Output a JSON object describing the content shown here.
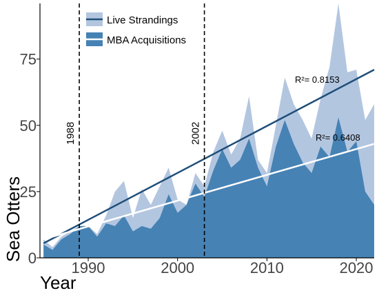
{
  "chart_data": {
    "type": "area",
    "xlabel": "Year",
    "ylabel": "Sea Otters",
    "xlim": [
      1984.6,
      2022
    ],
    "ylim": [
      0,
      96
    ],
    "xticks": [
      1990,
      2000,
      2010,
      2020
    ],
    "yticks": [
      0,
      25,
      50,
      75
    ],
    "grid": false,
    "legend_position": "top-left",
    "x": [
      1985,
      1986,
      1987,
      1988,
      1989,
      1990,
      1991,
      1992,
      1993,
      1994,
      1995,
      1996,
      1997,
      1998,
      1999,
      2000,
      2001,
      2002,
      2003,
      2004,
      2005,
      2006,
      2007,
      2008,
      2009,
      2010,
      2011,
      2012,
      2013,
      2014,
      2015,
      2016,
      2017,
      2018,
      2019,
      2020,
      2021,
      2022
    ],
    "series": [
      {
        "name": "Live Strandings",
        "color": "#b3c6e0",
        "values": [
          7,
          4,
          8,
          10,
          12,
          12,
          9,
          16,
          25,
          29,
          15,
          26,
          20,
          27,
          34,
          22,
          20,
          32,
          27,
          40,
          48,
          39,
          45,
          61,
          37,
          32,
          50,
          68,
          58,
          52,
          45,
          60,
          72,
          96,
          70,
          71,
          52,
          58
        ]
      },
      {
        "name": "MBA Acquisitions",
        "color": "#4682b4",
        "values": [
          5,
          3,
          7,
          9,
          12,
          12,
          8,
          13,
          12,
          16,
          10,
          12,
          11,
          15,
          24,
          17,
          20,
          28,
          23,
          33,
          41,
          34,
          37,
          45,
          34,
          27,
          42,
          52,
          43,
          36,
          32,
          42,
          38,
          53,
          40,
          44,
          25,
          20
        ]
      }
    ],
    "trendlines": [
      {
        "series": "Live Strandings",
        "label": "R²= 0.8153",
        "start": [
          1985,
          5.5
        ],
        "end": [
          2022,
          71
        ],
        "color": "#1f4e79"
      },
      {
        "series": "MBA Acquisitions",
        "label": "R²= 0.6408",
        "start": [
          1985,
          7
        ],
        "end": [
          2022,
          43
        ],
        "color": "#ffffff"
      }
    ],
    "vertical_lines": [
      {
        "x": 1989,
        "label": "1988"
      },
      {
        "x": 2003,
        "label": "2002"
      }
    ]
  }
}
